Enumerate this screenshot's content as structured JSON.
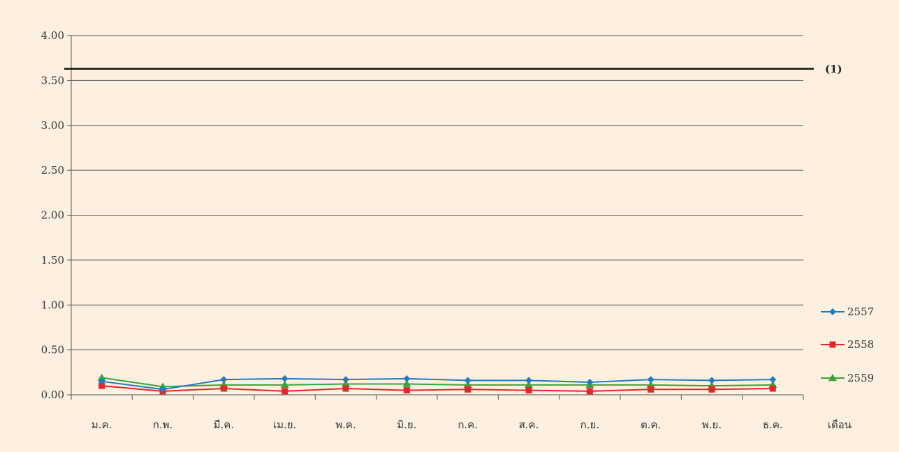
{
  "chart_data": {
    "type": "line",
    "title": "",
    "xlabel": "เดือน",
    "ylabel": "",
    "categories": [
      "ม.ค.",
      "ก.พ.",
      "มี.ค.",
      "เม.ย.",
      "พ.ค.",
      "มิ.ย.",
      "ก.ค.",
      "ส.ค.",
      "ก.ย.",
      "ต.ค.",
      "พ.ย.",
      "ธ.ค."
    ],
    "ylim": [
      0,
      4
    ],
    "yticks": [
      "0.00",
      "0.50",
      "1.00",
      "1.50",
      "2.00",
      "2.50",
      "3.00",
      "3.50",
      "4.00"
    ],
    "grid": true,
    "legend_position": "right",
    "reference_line": {
      "label": "(1)",
      "value": 3.63,
      "color": "#111111"
    },
    "series": [
      {
        "name": "2557",
        "color": "#1f7bc4",
        "marker": "diamond",
        "values": [
          0.15,
          0.06,
          0.17,
          0.18,
          0.17,
          0.18,
          0.16,
          0.16,
          0.14,
          0.17,
          0.16,
          0.17
        ]
      },
      {
        "name": "2558",
        "color": "#e8252a",
        "marker": "square",
        "values": [
          0.1,
          0.04,
          0.07,
          0.04,
          0.07,
          0.05,
          0.06,
          0.05,
          0.04,
          0.06,
          0.06,
          0.07
        ]
      },
      {
        "name": "2559",
        "color": "#3aa43c",
        "marker": "triangle",
        "values": [
          0.19,
          0.09,
          0.11,
          0.11,
          0.12,
          0.12,
          0.11,
          0.11,
          0.11,
          0.11,
          0.1,
          0.11
        ]
      }
    ]
  }
}
